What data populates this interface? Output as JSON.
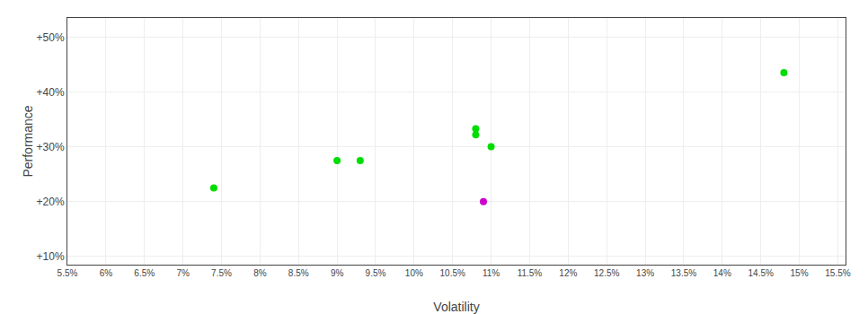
{
  "chart_data": {
    "type": "scatter",
    "xlabel": "Volatility",
    "ylabel": "Performance",
    "xlim": [
      0.055,
      0.156
    ],
    "ylim": [
      0.085,
      0.535
    ],
    "xticks": [
      {
        "value": 0.055,
        "label": "5.5%"
      },
      {
        "value": 0.06,
        "label": "6%"
      },
      {
        "value": 0.065,
        "label": "6.5%"
      },
      {
        "value": 0.07,
        "label": "7%"
      },
      {
        "value": 0.075,
        "label": "7.5%"
      },
      {
        "value": 0.08,
        "label": "8%"
      },
      {
        "value": 0.085,
        "label": "8.5%"
      },
      {
        "value": 0.09,
        "label": "9%"
      },
      {
        "value": 0.095,
        "label": "9.5%"
      },
      {
        "value": 0.1,
        "label": "10%"
      },
      {
        "value": 0.105,
        "label": "10.5%"
      },
      {
        "value": 0.11,
        "label": "11%"
      },
      {
        "value": 0.115,
        "label": "11.5%"
      },
      {
        "value": 0.12,
        "label": "12%"
      },
      {
        "value": 0.125,
        "label": "12.5%"
      },
      {
        "value": 0.13,
        "label": "13%"
      },
      {
        "value": 0.135,
        "label": "13.5%"
      },
      {
        "value": 0.14,
        "label": "14%"
      },
      {
        "value": 0.145,
        "label": "14.5%"
      },
      {
        "value": 0.15,
        "label": "15%"
      },
      {
        "value": 0.155,
        "label": "15.5%"
      }
    ],
    "yticks": [
      {
        "value": 0.1,
        "label": "+10%"
      },
      {
        "value": 0.2,
        "label": "+20%"
      },
      {
        "value": 0.3,
        "label": "+30%"
      },
      {
        "value": 0.4,
        "label": "+40%"
      },
      {
        "value": 0.5,
        "label": "+50%"
      }
    ],
    "grid": true,
    "series": [
      {
        "color": "#00dd00",
        "marker": "circle",
        "x": [
          0.074,
          0.09,
          0.093,
          0.108,
          0.108,
          0.11,
          0.148
        ],
        "values": [
          0.225,
          0.275,
          0.275,
          0.333,
          0.322,
          0.3,
          0.435
        ]
      },
      {
        "color": "#cc00cc",
        "marker": "circle",
        "x": [
          0.109
        ],
        "values": [
          0.2
        ]
      }
    ]
  }
}
